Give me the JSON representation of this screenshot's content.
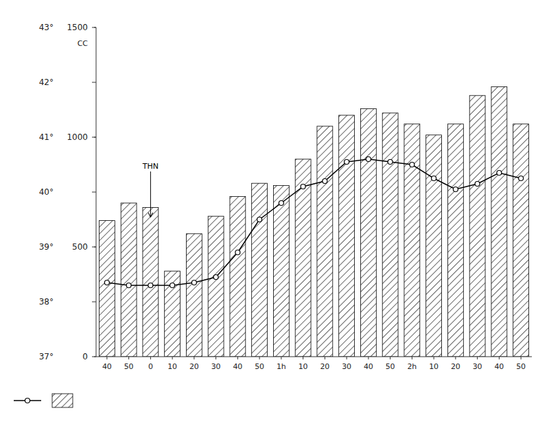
{
  "chart_data": {
    "type": "bar",
    "categories": [
      "40",
      "50",
      "0",
      "10",
      "20",
      "30",
      "40",
      "50",
      "1h",
      "10",
      "20",
      "30",
      "40",
      "50",
      "2h",
      "10",
      "20",
      "30",
      "40",
      "50"
    ],
    "series": [
      {
        "type": "bar",
        "color": "#000000",
        "values": [
          620,
          700,
          680,
          390,
          560,
          640,
          730,
          790,
          780,
          900,
          1050,
          1100,
          1130,
          1110,
          1060,
          1010,
          1060,
          1190,
          1230,
          1060
        ]
      },
      {
        "type": "line",
        "axis": "y2",
        "color": "#000000",
        "marker": "circle",
        "values": [
          38.35,
          38.3,
          38.3,
          38.3,
          38.35,
          38.45,
          38.9,
          39.5,
          39.8,
          40.1,
          40.2,
          40.55,
          40.6,
          40.55,
          40.5,
          40.25,
          40.05,
          40.15,
          40.35,
          40.25
        ]
      }
    ],
    "ylabel": "CC",
    "ylim": [
      0,
      1500
    ],
    "yticks": [
      0,
      500,
      1000,
      1500
    ],
    "y2lim": [
      37,
      43
    ],
    "y2ticks": [
      {
        "value": 37,
        "label": "37°"
      },
      {
        "value": 38,
        "label": "38°"
      },
      {
        "value": 39,
        "label": "39°"
      },
      {
        "value": 40,
        "label": "40°"
      },
      {
        "value": 41,
        "label": "41°"
      },
      {
        "value": 42,
        "label": "42°"
      },
      {
        "value": 43,
        "label": "43°"
      }
    ],
    "annotations": [
      {
        "text": "THN",
        "index": 2,
        "axis": "y2",
        "y": 39.55,
        "text_y": 40.35
      }
    ],
    "grid": false,
    "legend": "lower left"
  }
}
